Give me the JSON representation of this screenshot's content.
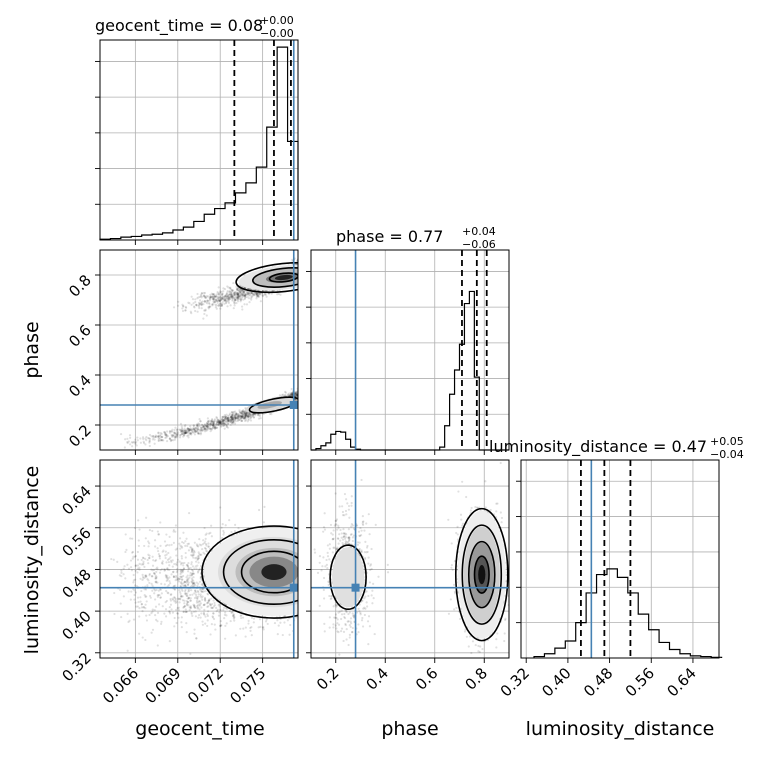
{
  "chart_data": {
    "type": "corner",
    "parameters": [
      {
        "label": "geocent_time",
        "title_text": "geocent_time = 0.08",
        "title_plus": "+0.00",
        "title_minus": "−0.00",
        "range": [
          0.0635,
          0.0775
        ],
        "truth": 0.0772,
        "quantiles": [
          0.073,
          0.0758,
          0.077
        ],
        "ticks": [
          "0.066",
          "0.069",
          "0.072",
          "0.075"
        ],
        "tick_values": [
          0.066,
          0.069,
          0.072,
          0.075
        ],
        "hist_edges": [
          0.0635,
          0.0775
        ],
        "hist_counts": [
          1,
          2,
          4,
          5,
          7,
          8,
          10,
          14,
          18,
          26,
          36,
          44,
          52,
          66,
          80,
          102,
          158,
          270,
          138
        ]
      },
      {
        "label": "phase",
        "title_text": "phase = 0.77",
        "title_plus": "+0.04",
        "title_minus": "−0.06",
        "range": [
          0.1,
          0.9
        ],
        "truth": 0.28,
        "quantiles": [
          0.71,
          0.77,
          0.81
        ],
        "ticks": [
          "0.2",
          "0.4",
          "0.6",
          "0.8"
        ],
        "tick_values": [
          0.2,
          0.4,
          0.6,
          0.8
        ],
        "y_ticks": [
          "0.2",
          "0.4",
          "0.6",
          "0.8"
        ],
        "hist_edges": [
          0.1,
          0.9
        ],
        "hist_counts": [
          0,
          2,
          6,
          10,
          22,
          26,
          25,
          15,
          4,
          1,
          0,
          0,
          0,
          0,
          0,
          0,
          0,
          0,
          0,
          0,
          0,
          0,
          0,
          0,
          0,
          0,
          4,
          34,
          78,
          112,
          148,
          205,
          222,
          102,
          0,
          0,
          0,
          0,
          0,
          0
        ]
      },
      {
        "label": "luminosity_distance",
        "title_text": "luminosity_distance = 0.47",
        "title_plus": "+0.05",
        "title_minus": "−0.04",
        "range": [
          0.31,
          0.69
        ],
        "truth": 0.445,
        "quantiles": [
          0.425,
          0.47,
          0.52
        ],
        "ticks": [
          "0.32",
          "0.40",
          "0.48",
          "0.56",
          "0.64"
        ],
        "tick_values": [
          0.32,
          0.4,
          0.48,
          0.56,
          0.64
        ],
        "y_ticks": [
          "0.32",
          "0.40",
          "0.48",
          "0.56",
          "0.64"
        ],
        "hist_edges": [
          0.335,
          0.695
        ],
        "hist_counts": [
          2,
          6,
          14,
          24,
          50,
          92,
          118,
          126,
          114,
          92,
          62,
          40,
          22,
          12,
          6,
          3,
          2,
          1
        ]
      }
    ],
    "hist_ylim": [
      0,
      280
    ]
  }
}
